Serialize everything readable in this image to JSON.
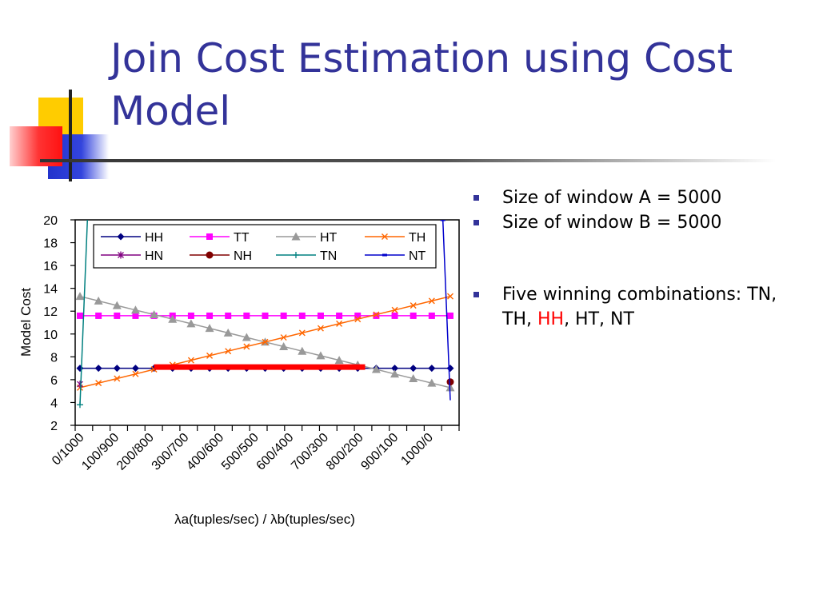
{
  "title": "Join Cost Estimation using Cost Model",
  "bullets": {
    "b1": "Size of window A = 5000",
    "b2": "Size of window B = 5000",
    "b3_prefix": "Five winning combinations: TN, TH, ",
    "b3_highlight": "HH",
    "b3_suffix": ", HT, NT"
  },
  "colors": {
    "title": "#333399",
    "bullet": "#333399",
    "highlight": "#ff0000"
  },
  "chart_data": {
    "type": "line",
    "ylabel": "Model Cost",
    "xlabel": "λa(tuples/sec) / λb(tuples/sec)",
    "ylim": [
      2,
      20
    ],
    "yticks": [
      2,
      4,
      6,
      8,
      10,
      12,
      14,
      16,
      18,
      20
    ],
    "categories": [
      "0/1000",
      "100/900",
      "200/800",
      "300/700",
      "400/600",
      "500/500",
      "600/400",
      "700/300",
      "800/200",
      "900/100",
      "1000/0"
    ],
    "x": [
      0,
      50,
      100,
      150,
      200,
      250,
      300,
      350,
      400,
      450,
      500,
      550,
      600,
      650,
      700,
      750,
      800,
      850,
      900,
      950,
      1000
    ],
    "series": [
      {
        "name": "HH",
        "color": "#000080",
        "marker": "diamond",
        "values": [
          7,
          7,
          7,
          7,
          7,
          7,
          7,
          7,
          7,
          7,
          7,
          7,
          7,
          7,
          7,
          7,
          7,
          7,
          7,
          7,
          7
        ]
      },
      {
        "name": "TT",
        "color": "#ff00ff",
        "marker": "square",
        "values": [
          11.6,
          11.6,
          11.6,
          11.6,
          11.6,
          11.6,
          11.6,
          11.6,
          11.6,
          11.6,
          11.6,
          11.6,
          11.6,
          11.6,
          11.6,
          11.6,
          11.6,
          11.6,
          11.6,
          11.6,
          11.6
        ]
      },
      {
        "name": "HT",
        "color": "#999999",
        "marker": "triangle",
        "values": [
          13.3,
          12.9,
          12.5,
          12.1,
          11.7,
          11.3,
          10.9,
          10.5,
          10.1,
          9.7,
          9.3,
          8.9,
          8.5,
          8.1,
          7.7,
          7.3,
          6.9,
          6.5,
          6.1,
          5.7,
          5.3
        ]
      },
      {
        "name": "TH",
        "color": "#ff6600",
        "marker": "x",
        "values": [
          5.3,
          5.7,
          6.1,
          6.5,
          6.9,
          7.3,
          7.7,
          8.1,
          8.5,
          8.9,
          9.3,
          9.7,
          10.1,
          10.5,
          10.9,
          11.3,
          11.7,
          12.1,
          12.5,
          12.9,
          13.3
        ]
      },
      {
        "name": "HN",
        "color": "#800080",
        "marker": "star",
        "points": [
          [
            0,
            5.6
          ]
        ]
      },
      {
        "name": "NH",
        "color": "#800000",
        "marker": "circle",
        "points": [
          [
            1000,
            5.8
          ]
        ]
      },
      {
        "name": "TN",
        "color": "#008080",
        "marker": "plus",
        "points": [
          [
            0,
            3.8
          ],
          [
            20,
            20
          ]
        ]
      },
      {
        "name": "NT",
        "color": "#0000cc",
        "marker": "dash",
        "points": [
          [
            980,
            20
          ],
          [
            1000,
            4.2
          ]
        ]
      }
    ],
    "annotations": [
      {
        "type": "highlight-segment",
        "color": "#ff0000",
        "x_start": 200,
        "x_end": 770,
        "y": 7.1
      }
    ],
    "legend": "top, inside plot area",
    "grid": false
  }
}
